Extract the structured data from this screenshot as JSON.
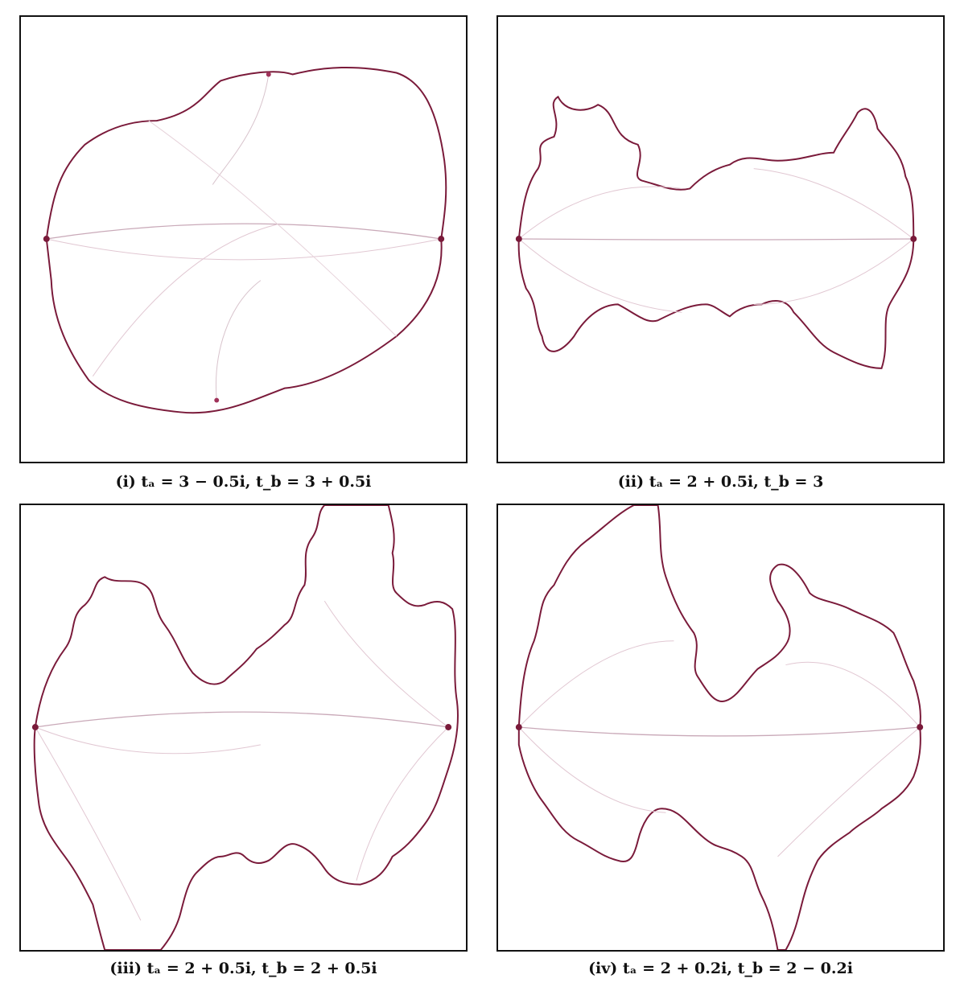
{
  "panels": [
    {
      "id": "i",
      "caption": "(i) tₐ = 3 − 0.5i, t_b = 3 + 0.5i"
    },
    {
      "id": "ii",
      "caption": "(ii) tₐ = 2 + 0.5i, t_b = 3"
    },
    {
      "id": "iii",
      "caption": "(iii) tₐ = 2 + 0.5i, t_b = 2 + 0.5i"
    },
    {
      "id": "iv",
      "caption": "(iv) tₐ = 2 + 0.2i, t_b = 2 − 0.2i"
    }
  ],
  "colors": {
    "boundary": "#7a1a3a",
    "fill_circles": "#d88aa6",
    "chord": "#c9a9b8",
    "frame": "#111111"
  }
}
